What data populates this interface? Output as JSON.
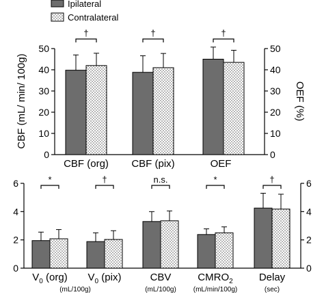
{
  "legend": [
    {
      "label": "Ipilateral",
      "color": "#6d6d6d",
      "pattern": "solid"
    },
    {
      "label": "Contralateral",
      "color": "#ffffff",
      "pattern": "dots"
    }
  ],
  "chart_data": [
    {
      "type": "bar",
      "categories": [
        "CBF (org)",
        "CBF (pix)",
        "OEF"
      ],
      "series": [
        {
          "name": "Ipilateral",
          "values": [
            39.8,
            38.8,
            45.0
          ],
          "errors": [
            7.2,
            7.8,
            5.7
          ]
        },
        {
          "name": "Contralateral",
          "values": [
            42.0,
            41.0,
            43.5
          ],
          "errors": [
            5.8,
            6.7,
            5.7
          ]
        }
      ],
      "significance": [
        "†",
        "†",
        "†"
      ],
      "ylabel_left": "CBF (mL/ min/ 100g)",
      "ylabel_right": "OEF (%)",
      "ylim": [
        0,
        50
      ],
      "yticks": [
        "0",
        "10",
        "20",
        "30",
        "40",
        "50"
      ],
      "grid": false
    },
    {
      "type": "bar",
      "categories": [
        "V0 (org)",
        "V0 (pix)",
        "CBV",
        "CMRO2",
        "Delay"
      ],
      "category_units": [
        "(mL/100g)",
        "",
        "(mL/100g)",
        "(mL/min/100g)",
        "(sec)"
      ],
      "series": [
        {
          "name": "Ipilateral",
          "values": [
            1.95,
            1.88,
            3.3,
            2.38,
            4.25
          ],
          "errors": [
            0.6,
            0.62,
            0.7,
            0.4,
            1.05
          ]
        },
        {
          "name": "Contralateral",
          "values": [
            2.08,
            2.03,
            3.35,
            2.5,
            4.18
          ],
          "errors": [
            0.65,
            0.62,
            0.7,
            0.42,
            1.05
          ]
        }
      ],
      "significance": [
        "*",
        "†",
        "n.s.",
        "*",
        "†"
      ],
      "ylim": [
        0,
        6
      ],
      "yticks": [
        "0",
        "2",
        "4",
        "6"
      ],
      "grid": false
    }
  ]
}
